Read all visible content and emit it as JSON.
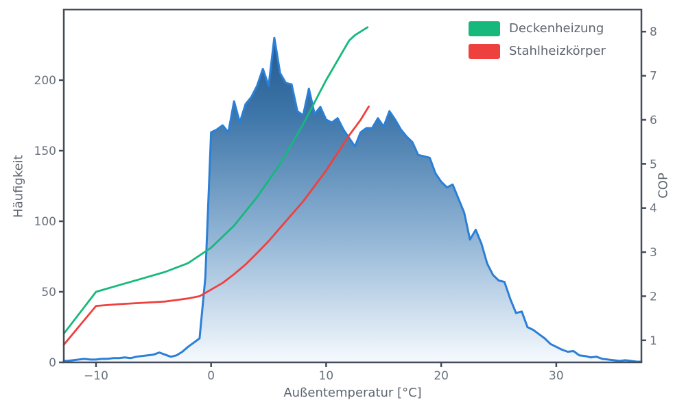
{
  "figure": {
    "background": "#ffffff",
    "xlabel": "Außentemperatur [°C]",
    "ylabel_left": "Häufigkeit",
    "ylabel_right": "COP",
    "colors": {
      "spine": "#454c59",
      "tick_label": "#6a727d",
      "axis_label": "#5d6670",
      "histogram_line": "#2b7fd6",
      "histogram_gradient": [
        "#174e87",
        "#3e76a9",
        "#93b6d6",
        "#f6fafe"
      ],
      "deckenheizung": "#17b87b",
      "stahlheizkoerper": "#ee413e"
    },
    "legend": [
      {
        "label": "Deckenheizung",
        "color": "#17b87b"
      },
      {
        "label": "Stahlheizkörper",
        "color": "#ee413e"
      }
    ]
  },
  "chart_data": {
    "type": "area",
    "title": "",
    "xlabel": "Außentemperatur [°C]",
    "ylabel_left": "Häufigkeit",
    "ylabel_right": "COP",
    "grid": false,
    "legend_position": "upper right",
    "xlim": [
      -12.8,
      37.4
    ],
    "ylim_left": [
      0,
      250
    ],
    "ylim_right": [
      0.5,
      8.5
    ],
    "x_ticks": {
      "positions": [
        -10,
        0,
        10,
        20,
        30
      ],
      "labels": [
        "−10",
        "0",
        "10",
        "20",
        "30"
      ]
    },
    "y_ticks_left": {
      "positions": [
        0,
        50,
        100,
        150,
        200
      ],
      "labels": [
        "0",
        "50",
        "100",
        "150",
        "200"
      ]
    },
    "y_ticks_right": {
      "positions": [
        1,
        2,
        3,
        4,
        5,
        6,
        7,
        8
      ],
      "labels": [
        "1",
        "2",
        "3",
        "4",
        "5",
        "6",
        "7",
        "8"
      ]
    },
    "series": [
      {
        "name": "Häufigkeit",
        "kind": "area",
        "axis": "left",
        "x": [
          -12.8,
          -12.5,
          -12,
          -11.5,
          -11,
          -10.5,
          -10,
          -9.5,
          -9,
          -8.5,
          -8,
          -7.5,
          -7,
          -6.5,
          -6,
          -5.5,
          -5,
          -4.5,
          -4,
          -3.5,
          -3,
          -2.5,
          -2,
          -1.5,
          -1,
          -0.5,
          0,
          0.5,
          1,
          1.5,
          2,
          2.5,
          3,
          3.5,
          4,
          4.5,
          5,
          5.5,
          6,
          6.5,
          7,
          7.5,
          8,
          8.5,
          9,
          9.5,
          10,
          10.5,
          11,
          11.5,
          12,
          12.5,
          13,
          13.5,
          14,
          14.5,
          15,
          15.5,
          16,
          16.5,
          17,
          17.5,
          18,
          18.5,
          19,
          19.5,
          20,
          20.5,
          21,
          21.5,
          22,
          22.5,
          23,
          23.5,
          24,
          24.5,
          25,
          25.5,
          26,
          26.5,
          27,
          27.5,
          28,
          28.5,
          29,
          29.5,
          30,
          30.5,
          31,
          31.5,
          32,
          32.5,
          33,
          33.5,
          34,
          34.5,
          35,
          35.5,
          36,
          36.5,
          37,
          37.4
        ],
        "y": [
          1,
          1,
          1.5,
          2,
          2.5,
          2,
          2,
          2.5,
          2.5,
          3,
          3,
          3.5,
          3,
          4,
          4.5,
          5,
          5.5,
          7,
          5.5,
          4,
          5,
          7.5,
          11,
          14,
          17,
          60,
          163,
          165,
          168,
          163,
          185,
          170,
          183,
          188,
          196,
          208,
          196,
          230,
          205,
          198,
          197,
          178,
          175,
          194,
          176,
          181,
          172,
          170,
          173,
          165,
          159,
          153,
          163,
          166,
          166,
          173,
          167,
          178,
          172,
          165,
          160,
          156,
          147,
          146,
          145,
          134,
          128,
          124,
          126,
          116,
          106,
          87,
          94,
          84,
          70,
          62,
          58,
          57,
          45,
          35,
          36,
          25,
          23,
          20,
          17,
          13,
          11,
          9,
          7.5,
          8,
          5,
          4.5,
          3.5,
          4,
          2.5,
          2,
          1.5,
          1,
          1.5,
          1,
          0.5,
          0.5
        ]
      },
      {
        "name": "Deckenheizung",
        "kind": "line",
        "axis": "right",
        "x": [
          -12.8,
          -10,
          -8,
          -6,
          -4,
          -2,
          0,
          2,
          4,
          6,
          8,
          10,
          12,
          12.5,
          13.6
        ],
        "y": [
          1.15,
          2.1,
          2.25,
          2.4,
          2.55,
          2.75,
          3.1,
          3.6,
          4.25,
          5.0,
          5.9,
          6.9,
          7.8,
          7.92,
          8.1
        ]
      },
      {
        "name": "Stahlheizkörper",
        "kind": "line",
        "axis": "right",
        "x": [
          -12.8,
          -10,
          -8,
          -6,
          -4,
          -2,
          -1,
          0,
          1,
          2,
          3,
          4,
          5,
          6,
          7,
          8,
          9,
          10,
          11,
          12,
          13,
          13.7
        ],
        "y": [
          0.9,
          1.78,
          1.82,
          1.85,
          1.88,
          1.95,
          2.0,
          2.15,
          2.3,
          2.5,
          2.72,
          2.98,
          3.25,
          3.55,
          3.85,
          4.15,
          4.5,
          4.85,
          5.25,
          5.65,
          6.0,
          6.3
        ]
      }
    ]
  }
}
